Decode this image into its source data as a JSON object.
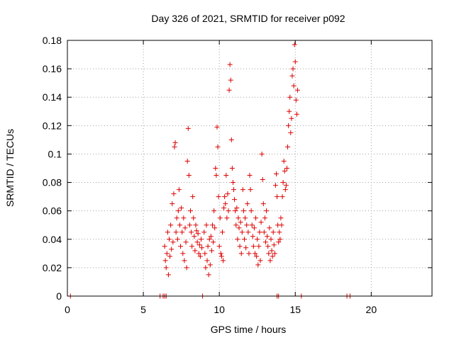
{
  "chart_data": {
    "type": "scatter",
    "title": "Day 326 of 2021, SRMTID for receiver p092",
    "xlabel": "GPS time / hours",
    "ylabel": "SRMTID / TECUs",
    "xlim": [
      0,
      24
    ],
    "ylim": [
      0,
      0.18
    ],
    "xticks": [
      0,
      5,
      10,
      15,
      20
    ],
    "yticks": [
      0,
      0.02,
      0.04,
      0.06,
      0.08,
      0.1,
      0.12,
      0.14,
      0.16,
      0.18
    ],
    "xtick_labels": [
      "0",
      "5",
      "10",
      "15",
      "20"
    ],
    "ytick_labels": [
      "0",
      "0.02",
      "0.04",
      "0.06",
      "0.08",
      "0.1",
      "0.12",
      "0.14",
      "0.16",
      "0.18"
    ],
    "grid": true,
    "marker": "+",
    "color": "#dd0000",
    "series": [
      {
        "name": "SRMTID",
        "points": [
          [
            0.2,
            0
          ],
          [
            6.1,
            0
          ],
          [
            6.3,
            0
          ],
          [
            6.4,
            0
          ],
          [
            6.5,
            0
          ],
          [
            8.9,
            0
          ],
          [
            13.8,
            0
          ],
          [
            13.9,
            0
          ],
          [
            15.4,
            0
          ],
          [
            18.4,
            0
          ],
          [
            18.6,
            0
          ],
          [
            6.4,
            0.035
          ],
          [
            6.45,
            0.025
          ],
          [
            6.5,
            0.02
          ],
          [
            6.55,
            0.03
          ],
          [
            6.6,
            0.045
          ],
          [
            6.65,
            0.015
          ],
          [
            6.7,
            0.04
          ],
          [
            6.75,
            0.028
          ],
          [
            6.8,
            0.05
          ],
          [
            6.85,
            0.033
          ],
          [
            6.9,
            0.065
          ],
          [
            6.95,
            0.038
          ],
          [
            7.0,
            0.072
          ],
          [
            7.05,
            0.105
          ],
          [
            7.1,
            0.108
          ],
          [
            7.15,
            0.045
          ],
          [
            7.2,
            0.055
          ],
          [
            7.25,
            0.04
          ],
          [
            7.3,
            0.06
          ],
          [
            7.35,
            0.075
          ],
          [
            7.4,
            0.05
          ],
          [
            7.45,
            0.035
          ],
          [
            7.5,
            0.062
          ],
          [
            7.55,
            0.045
          ],
          [
            7.6,
            0.03
          ],
          [
            7.65,
            0.055
          ],
          [
            7.7,
            0.025
          ],
          [
            7.75,
            0.048
          ],
          [
            7.8,
            0.038
          ],
          [
            7.85,
            0.02
          ],
          [
            7.9,
            0.095
          ],
          [
            7.95,
            0.118
          ],
          [
            8.0,
            0.085
          ],
          [
            8.05,
            0.05
          ],
          [
            8.1,
            0.06
          ],
          [
            8.15,
            0.045
          ],
          [
            8.2,
            0.035
          ],
          [
            8.25,
            0.07
          ],
          [
            8.3,
            0.055
          ],
          [
            8.35,
            0.042
          ],
          [
            8.4,
            0.032
          ],
          [
            8.45,
            0.05
          ],
          [
            8.5,
            0.046
          ],
          [
            8.55,
            0.038
          ],
          [
            8.6,
            0.044
          ],
          [
            8.65,
            0.03
          ],
          [
            8.7,
            0.036
          ],
          [
            8.75,
            0.028
          ],
          [
            8.8,
            0.04
          ],
          [
            8.85,
            0.034
          ],
          [
            9.0,
            0.045
          ],
          [
            9.05,
            0.03
          ],
          [
            9.1,
            0.02
          ],
          [
            9.15,
            0.05
          ],
          [
            9.2,
            0.025
          ],
          [
            9.25,
            0.035
          ],
          [
            9.3,
            0.015
          ],
          [
            9.35,
            0.04
          ],
          [
            9.4,
            0.022
          ],
          [
            9.45,
            0.042
          ],
          [
            9.5,
            0.032
          ],
          [
            9.55,
            0.05
          ],
          [
            9.6,
            0.038
          ],
          [
            9.65,
            0.06
          ],
          [
            9.7,
            0.048
          ],
          [
            9.75,
            0.09
          ],
          [
            9.8,
            0.085
          ],
          [
            9.85,
            0.119
          ],
          [
            9.9,
            0.105
          ],
          [
            9.95,
            0.07
          ],
          [
            10.0,
            0.035
          ],
          [
            10.05,
            0.055
          ],
          [
            10.1,
            0.03
          ],
          [
            10.15,
            0.028
          ],
          [
            10.2,
            0.045
          ],
          [
            10.25,
            0.025
          ],
          [
            10.3,
            0.062
          ],
          [
            10.35,
            0.07
          ],
          [
            10.4,
            0.065
          ],
          [
            10.45,
            0.085
          ],
          [
            10.5,
            0.055
          ],
          [
            10.55,
            0.072
          ],
          [
            10.6,
            0.06
          ],
          [
            10.65,
            0.145
          ],
          [
            10.7,
            0.163
          ],
          [
            10.75,
            0.152
          ],
          [
            10.8,
            0.11
          ],
          [
            10.85,
            0.09
          ],
          [
            10.9,
            0.08
          ],
          [
            10.95,
            0.075
          ],
          [
            11.0,
            0.068
          ],
          [
            11.05,
            0.06
          ],
          [
            11.1,
            0.05
          ],
          [
            11.15,
            0.062
          ],
          [
            11.2,
            0.04
          ],
          [
            11.25,
            0.055
          ],
          [
            11.3,
            0.048
          ],
          [
            11.35,
            0.035
          ],
          [
            11.4,
            0.052
          ],
          [
            11.45,
            0.03
          ],
          [
            11.5,
            0.045
          ],
          [
            11.55,
            0.075
          ],
          [
            11.6,
            0.06
          ],
          [
            11.65,
            0.04
          ],
          [
            11.7,
            0.055
          ],
          [
            11.75,
            0.034
          ],
          [
            11.8,
            0.05
          ],
          [
            11.85,
            0.065
          ],
          [
            11.9,
            0.045
          ],
          [
            11.95,
            0.03
          ],
          [
            12.0,
            0.085
          ],
          [
            12.05,
            0.075
          ],
          [
            12.1,
            0.06
          ],
          [
            12.15,
            0.05
          ],
          [
            12.2,
            0.042
          ],
          [
            12.25,
            0.035
          ],
          [
            12.3,
            0.048
          ],
          [
            12.35,
            0.03
          ],
          [
            12.4,
            0.055
          ],
          [
            12.45,
            0.028
          ],
          [
            12.5,
            0.04
          ],
          [
            12.55,
            0.022
          ],
          [
            12.6,
            0.035
          ],
          [
            12.65,
            0.045
          ],
          [
            12.7,
            0.025
          ],
          [
            12.75,
            0.052
          ],
          [
            12.8,
            0.1
          ],
          [
            12.85,
            0.082
          ],
          [
            12.9,
            0.065
          ],
          [
            12.95,
            0.045
          ],
          [
            13.0,
            0.055
          ],
          [
            13.05,
            0.038
          ],
          [
            13.1,
            0.06
          ],
          [
            13.15,
            0.042
          ],
          [
            13.2,
            0.035
          ],
          [
            13.25,
            0.03
          ],
          [
            13.3,
            0.048
          ],
          [
            13.35,
            0.025
          ],
          [
            13.4,
            0.04
          ],
          [
            13.45,
            0.032
          ],
          [
            13.5,
            0.028
          ],
          [
            13.55,
            0.045
          ],
          [
            13.6,
            0.036
          ],
          [
            13.65,
            0.03
          ],
          [
            13.7,
            0.078
          ],
          [
            13.75,
            0.086
          ],
          [
            13.8,
            0.07
          ],
          [
            13.85,
            0.05
          ],
          [
            13.9,
            0.038
          ],
          [
            13.95,
            0.045
          ],
          [
            14.0,
            0.04
          ],
          [
            14.05,
            0.055
          ],
          [
            14.1,
            0.05
          ],
          [
            14.15,
            0.07
          ],
          [
            14.2,
            0.08
          ],
          [
            14.25,
            0.095
          ],
          [
            14.3,
            0.088
          ],
          [
            14.35,
            0.075
          ],
          [
            14.4,
            0.078
          ],
          [
            14.45,
            0.09
          ],
          [
            14.5,
            0.105
          ],
          [
            14.55,
            0.12
          ],
          [
            14.6,
            0.13
          ],
          [
            14.65,
            0.14
          ],
          [
            14.7,
            0.115
          ],
          [
            14.75,
            0.125
          ],
          [
            14.8,
            0.155
          ],
          [
            14.85,
            0.16
          ],
          [
            14.9,
            0.148
          ],
          [
            14.95,
            0.177
          ],
          [
            15.0,
            0.165
          ],
          [
            15.05,
            0.138
          ],
          [
            15.1,
            0.128
          ],
          [
            15.15,
            0.145
          ]
        ]
      }
    ]
  }
}
